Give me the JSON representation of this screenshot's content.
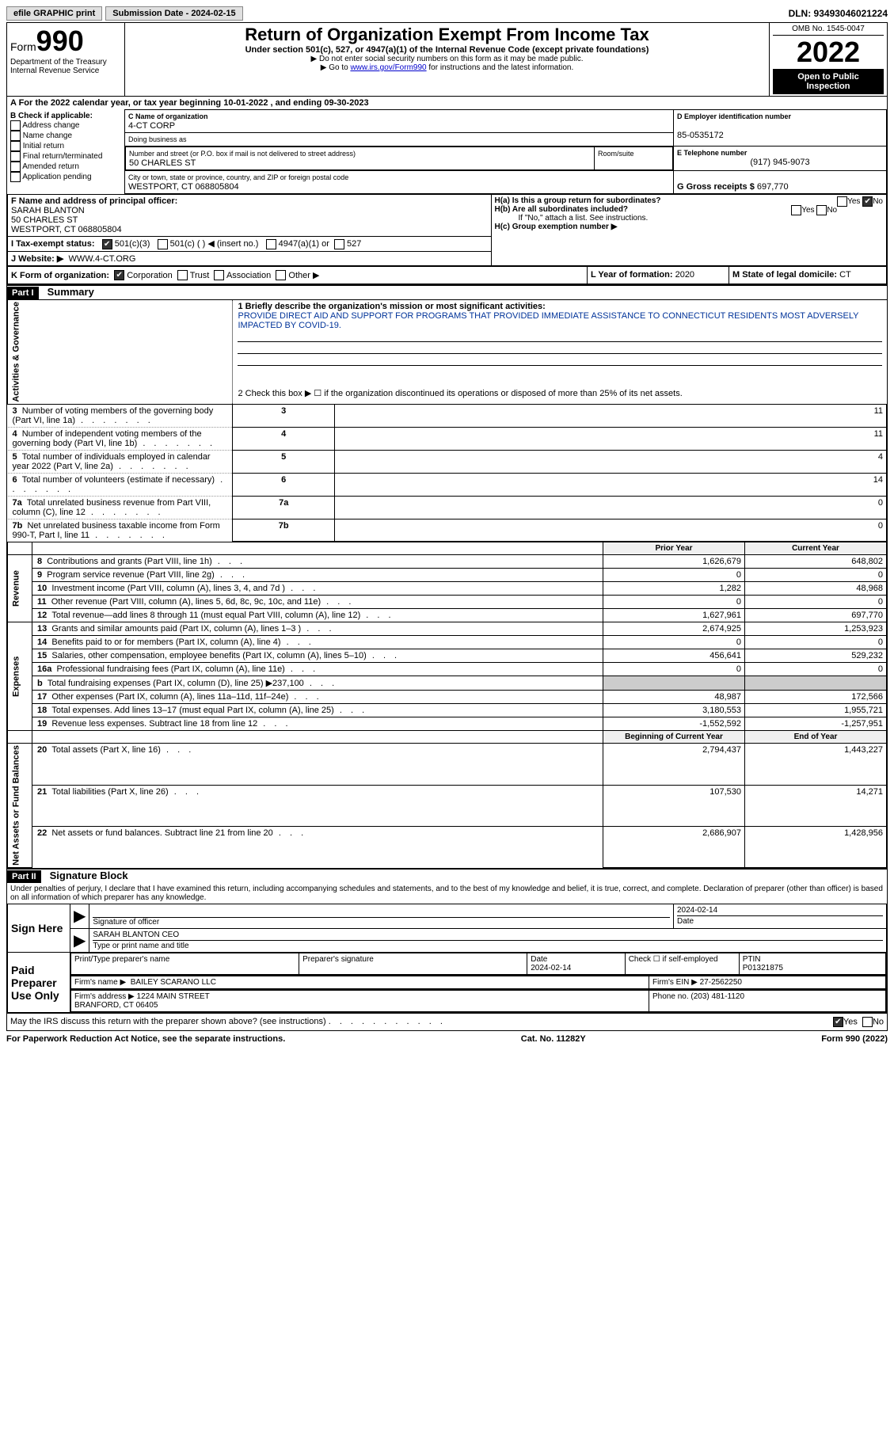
{
  "top": {
    "efile": "efile GRAPHIC print",
    "submission": "Submission Date - 2024-02-15",
    "dln": "DLN: 93493046021224"
  },
  "header": {
    "form": "Form",
    "form_num": "990",
    "dept": "Department of the Treasury\nInternal Revenue Service",
    "title": "Return of Organization Exempt From Income Tax",
    "subtitle": "Under section 501(c), 527, or 4947(a)(1) of the Internal Revenue Code (except private foundations)",
    "note1": "▶ Do not enter social security numbers on this form as it may be made public.",
    "note2_prefix": "▶ Go to ",
    "note2_link": "www.irs.gov/Form990",
    "note2_suffix": " for instructions and the latest information.",
    "omb": "OMB No. 1545-0047",
    "year": "2022",
    "inspection": "Open to Public Inspection"
  },
  "periodA": {
    "text_prefix": "A For the 2022 calendar year, or tax year beginning ",
    "begin": "10-01-2022",
    "mid": "   , and ending ",
    "end": "09-30-2023"
  },
  "boxB": {
    "label": "B Check if applicable:",
    "items": [
      "Address change",
      "Name change",
      "Initial return",
      "Final return/terminated",
      "Amended return",
      "Application pending"
    ]
  },
  "boxC": {
    "name_label": "C Name of organization",
    "name": "4-CT CORP",
    "dba_label": "Doing business as",
    "dba": "",
    "street_label": "Number and street (or P.O. box if mail is not delivered to street address)",
    "street": "50 CHARLES ST",
    "room_label": "Room/suite",
    "city_label": "City or town, state or province, country, and ZIP or foreign postal code",
    "city": "WESTPORT, CT  068805804"
  },
  "boxD": {
    "label": "D Employer identification number",
    "value": "85-0535172"
  },
  "boxE": {
    "label": "E Telephone number",
    "value": "(917) 945-9073"
  },
  "boxG": {
    "label": "G Gross receipts $",
    "value": "697,770"
  },
  "boxF": {
    "label": "F Name and address of principal officer:",
    "name": "SARAH BLANTON",
    "street": "50 CHARLES ST",
    "city": "WESTPORT, CT  068805804"
  },
  "boxH": {
    "a": "H(a)  Is this a group return for subordinates?",
    "b": "H(b)  Are all subordinates included?",
    "b_note": "If \"No,\" attach a list. See instructions.",
    "c": "H(c)  Group exemption number ▶"
  },
  "boxI": {
    "label": "I  Tax-exempt status:",
    "opt1": "501(c)(3)",
    "opt2": "501(c) (   ) ◀ (insert no.)",
    "opt3": "4947(a)(1) or",
    "opt4": "527"
  },
  "boxJ": {
    "label": "J  Website: ▶",
    "value": "WWW.4-CT.ORG"
  },
  "boxK": {
    "label": "K Form of organization:",
    "opts": [
      "Corporation",
      "Trust",
      "Association",
      "Other ▶"
    ]
  },
  "boxL": {
    "label": "L Year of formation:",
    "value": "2020"
  },
  "boxM": {
    "label": "M State of legal domicile:",
    "value": "CT"
  },
  "part1": {
    "header": "Part I",
    "title": "Summary",
    "line1_label": "1  Briefly describe the organization's mission or most significant activities:",
    "mission": "PROVIDE DIRECT AID AND SUPPORT FOR PROGRAMS THAT PROVIDED IMMEDIATE ASSISTANCE TO CONNECTICUT RESIDENTS MOST ADVERSELY IMPACTED BY COVID-19.",
    "line2": "2   Check this box ▶ ☐ if the organization discontinued its operations or disposed of more than 25% of its net assets.",
    "gov_label": "Activities & Governance",
    "rev_label": "Revenue",
    "exp_label": "Expenses",
    "net_label": "Net Assets or Fund Balances",
    "rows_gov": [
      {
        "n": "3",
        "text": "Number of voting members of the governing body (Part VI, line 1a)",
        "val": "11"
      },
      {
        "n": "4",
        "text": "Number of independent voting members of the governing body (Part VI, line 1b)",
        "val": "11"
      },
      {
        "n": "5",
        "text": "Total number of individuals employed in calendar year 2022 (Part V, line 2a)",
        "val": "4"
      },
      {
        "n": "6",
        "text": "Total number of volunteers (estimate if necessary)",
        "val": "14"
      },
      {
        "n": "7a",
        "text": "Total unrelated business revenue from Part VIII, column (C), line 12",
        "val": "0"
      },
      {
        "n": "7b",
        "text": "Net unrelated business taxable income from Form 990-T, Part I, line 11",
        "val": "0"
      }
    ],
    "col_prior": "Prior Year",
    "col_current": "Current Year",
    "rows_rev": [
      {
        "n": "8",
        "text": "Contributions and grants (Part VIII, line 1h)",
        "prior": "1,626,679",
        "curr": "648,802"
      },
      {
        "n": "9",
        "text": "Program service revenue (Part VIII, line 2g)",
        "prior": "0",
        "curr": "0"
      },
      {
        "n": "10",
        "text": "Investment income (Part VIII, column (A), lines 3, 4, and 7d )",
        "prior": "1,282",
        "curr": "48,968"
      },
      {
        "n": "11",
        "text": "Other revenue (Part VIII, column (A), lines 5, 6d, 8c, 9c, 10c, and 11e)",
        "prior": "0",
        "curr": "0"
      },
      {
        "n": "12",
        "text": "Total revenue—add lines 8 through 11 (must equal Part VIII, column (A), line 12)",
        "prior": "1,627,961",
        "curr": "697,770"
      }
    ],
    "rows_exp": [
      {
        "n": "13",
        "text": "Grants and similar amounts paid (Part IX, column (A), lines 1–3 )",
        "prior": "2,674,925",
        "curr": "1,253,923"
      },
      {
        "n": "14",
        "text": "Benefits paid to or for members (Part IX, column (A), line 4)",
        "prior": "0",
        "curr": "0"
      },
      {
        "n": "15",
        "text": "Salaries, other compensation, employee benefits (Part IX, column (A), lines 5–10)",
        "prior": "456,641",
        "curr": "529,232"
      },
      {
        "n": "16a",
        "text": "Professional fundraising fees (Part IX, column (A), line 11e)",
        "prior": "0",
        "curr": "0"
      },
      {
        "n": "b",
        "text": "Total fundraising expenses (Part IX, column (D), line 25) ▶237,100",
        "prior": "GRAY",
        "curr": "GRAY"
      },
      {
        "n": "17",
        "text": "Other expenses (Part IX, column (A), lines 11a–11d, 11f–24e)",
        "prior": "48,987",
        "curr": "172,566"
      },
      {
        "n": "18",
        "text": "Total expenses. Add lines 13–17 (must equal Part IX, column (A), line 25)",
        "prior": "3,180,553",
        "curr": "1,955,721"
      },
      {
        "n": "19",
        "text": "Revenue less expenses. Subtract line 18 from line 12",
        "prior": "-1,552,592",
        "curr": "-1,257,951"
      }
    ],
    "col_begin": "Beginning of Current Year",
    "col_end": "End of Year",
    "rows_net": [
      {
        "n": "20",
        "text": "Total assets (Part X, line 16)",
        "prior": "2,794,437",
        "curr": "1,443,227"
      },
      {
        "n": "21",
        "text": "Total liabilities (Part X, line 26)",
        "prior": "107,530",
        "curr": "14,271"
      },
      {
        "n": "22",
        "text": "Net assets or fund balances. Subtract line 21 from line 20",
        "prior": "2,686,907",
        "curr": "1,428,956"
      }
    ]
  },
  "part2": {
    "header": "Part II",
    "title": "Signature Block",
    "decl": "Under penalties of perjury, I declare that I have examined this return, including accompanying schedules and statements, and to the best of my knowledge and belief, it is true, correct, and complete. Declaration of preparer (other than officer) is based on all information of which preparer has any knowledge.",
    "sign_here": "Sign Here",
    "sig_officer": "Signature of officer",
    "sig_date": "2024-02-14",
    "date_label": "Date",
    "officer_name": "SARAH BLANTON CEO",
    "type_name": "Type or print name and title",
    "paid": "Paid Preparer Use Only",
    "prep_name_label": "Print/Type preparer's name",
    "prep_sig_label": "Preparer's signature",
    "prep_date_label": "Date",
    "prep_date": "2024-02-14",
    "check_label": "Check ☐ if self-employed",
    "ptin_label": "PTIN",
    "ptin": "P01321875",
    "firm_name_label": "Firm's name    ▶",
    "firm_name": "BAILEY SCARANO LLC",
    "firm_ein_label": "Firm's EIN ▶",
    "firm_ein": "27-2562250",
    "firm_addr_label": "Firm's address ▶",
    "firm_addr": "1224 MAIN STREET\nBRANFORD, CT  06405",
    "phone_label": "Phone no.",
    "phone": "(203) 481-1120",
    "discuss": "May the IRS discuss this return with the preparer shown above? (see instructions)"
  },
  "footer": {
    "notice": "For Paperwork Reduction Act Notice, see the separate instructions.",
    "cat": "Cat. No. 11282Y",
    "form": "Form 990 (2022)"
  }
}
